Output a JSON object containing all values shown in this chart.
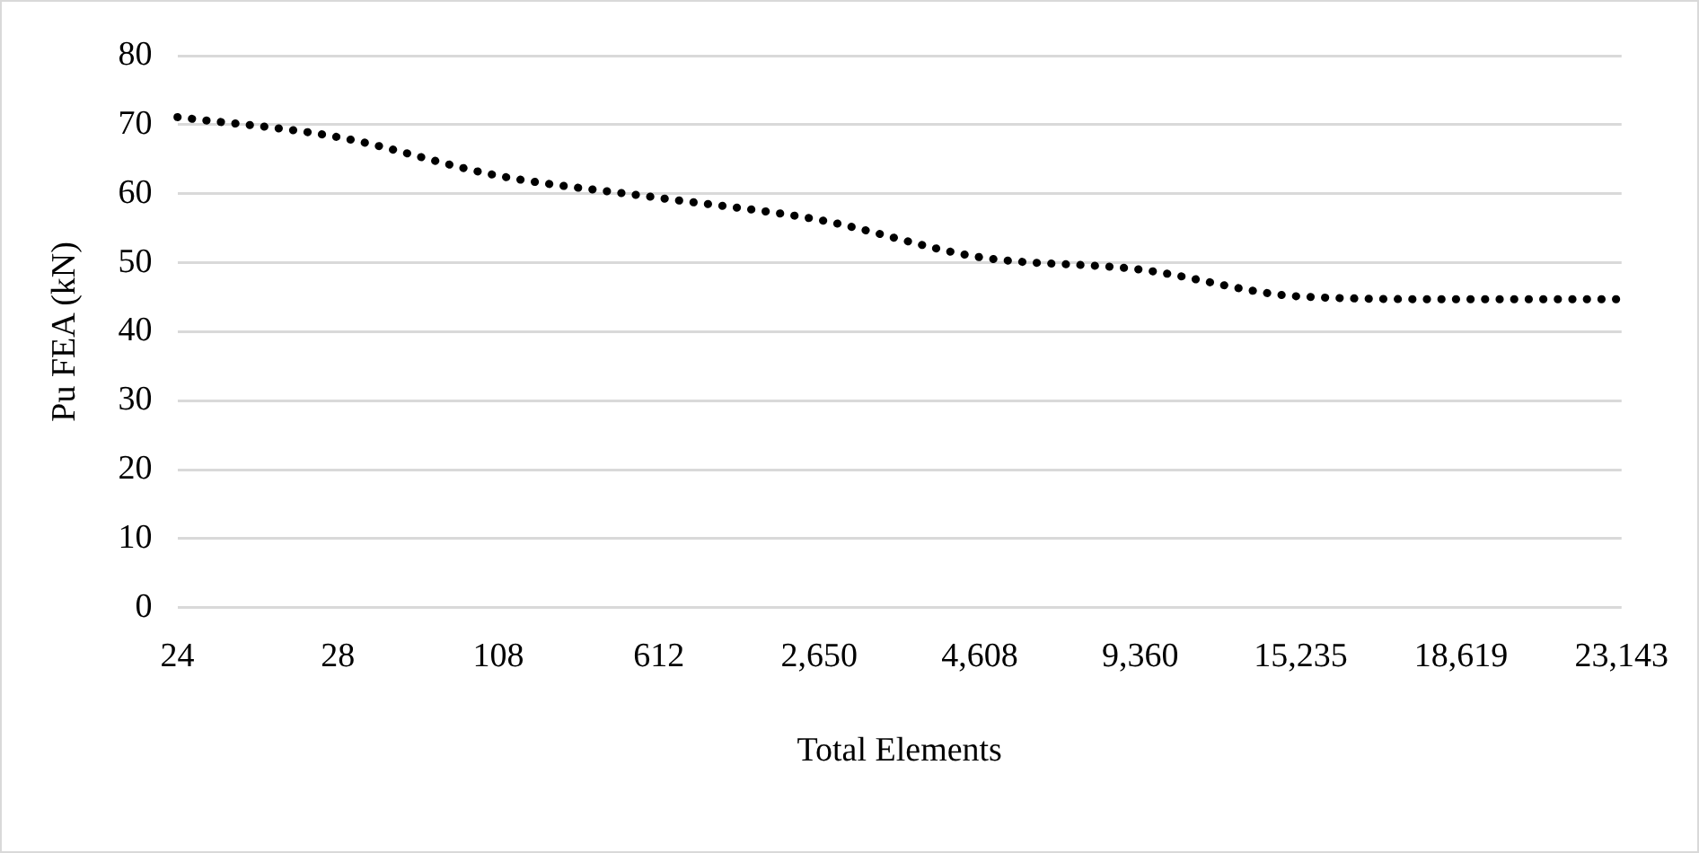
{
  "chart_data": {
    "type": "line",
    "xlabel": "Total Elements",
    "ylabel": "Pu FEA (kN)",
    "categories": [
      "24",
      "28",
      "108",
      "612",
      "2,650",
      "4,608",
      "9,360",
      "15,235",
      "18,619",
      "23,143"
    ],
    "series": [
      {
        "color": "#000000",
        "values": [
          71.1,
          68.2,
          62.6,
          59.4,
          56.2,
          50.8,
          49.0,
          45.1,
          44.7,
          44.7
        ]
      }
    ],
    "ylim": [
      0,
      80
    ],
    "yticks": [
      0,
      10,
      20,
      30,
      40,
      50,
      60,
      70,
      80
    ],
    "grid": "y",
    "legend": false,
    "marker": "none",
    "line_style": "dotted"
  }
}
